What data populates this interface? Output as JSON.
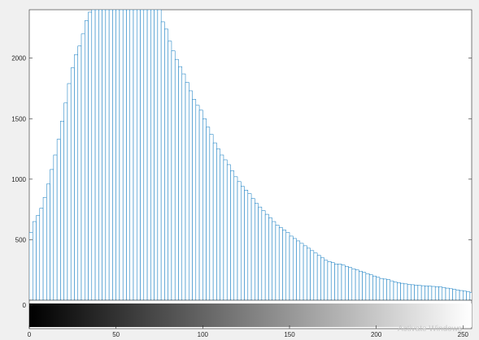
{
  "chart_data": {
    "type": "bar",
    "title": "",
    "xlabel": "",
    "ylabel": "",
    "xlim": [
      0,
      255
    ],
    "ylim": [
      0,
      2400
    ],
    "x_ticks": [
      0,
      50,
      100,
      150,
      200,
      250
    ],
    "y_ticks": [
      0,
      500,
      1000,
      1500,
      2000
    ],
    "bin_width": 2,
    "bar_color": "#0072bd",
    "colorbar": {
      "from": "#000000",
      "to": "#ffffff",
      "range": [
        0,
        255
      ]
    },
    "x": [
      1,
      3,
      5,
      7,
      9,
      11,
      13,
      15,
      17,
      19,
      21,
      23,
      25,
      27,
      29,
      31,
      33,
      35,
      37,
      39,
      41,
      43,
      45,
      47,
      49,
      51,
      53,
      55,
      57,
      59,
      61,
      63,
      65,
      67,
      69,
      71,
      73,
      75,
      77,
      79,
      81,
      83,
      85,
      87,
      89,
      91,
      93,
      95,
      97,
      99,
      101,
      103,
      105,
      107,
      109,
      111,
      113,
      115,
      117,
      119,
      121,
      123,
      125,
      127,
      129,
      131,
      133,
      135,
      137,
      139,
      141,
      143,
      145,
      147,
      149,
      151,
      153,
      155,
      157,
      159,
      161,
      163,
      165,
      167,
      169,
      171,
      173,
      175,
      177,
      179,
      181,
      183,
      185,
      187,
      189,
      191,
      193,
      195,
      197,
      199,
      201,
      203,
      205,
      207,
      209,
      211,
      213,
      215,
      217,
      219,
      221,
      223,
      225,
      227,
      229,
      231,
      233,
      235,
      237,
      239,
      241,
      243,
      245,
      247,
      249,
      251,
      253,
      255
    ],
    "values": [
      560,
      650,
      700,
      760,
      850,
      960,
      1080,
      1200,
      1330,
      1480,
      1630,
      1790,
      1920,
      2030,
      2100,
      2200,
      2310,
      2380,
      2400,
      2400,
      2400,
      2400,
      2400,
      2400,
      2400,
      2400,
      2400,
      2400,
      2400,
      2400,
      2400,
      2400,
      2400,
      2400,
      2400,
      2400,
      2400,
      2400,
      2300,
      2240,
      2140,
      2060,
      1990,
      1930,
      1870,
      1800,
      1730,
      1660,
      1610,
      1570,
      1500,
      1430,
      1370,
      1300,
      1250,
      1200,
      1160,
      1120,
      1070,
      1020,
      980,
      940,
      910,
      880,
      840,
      800,
      770,
      740,
      710,
      680,
      650,
      620,
      600,
      580,
      560,
      530,
      510,
      490,
      470,
      450,
      430,
      410,
      390,
      370,
      350,
      330,
      320,
      310,
      300,
      300,
      290,
      280,
      270,
      260,
      250,
      240,
      230,
      220,
      210,
      200,
      190,
      180,
      175,
      170,
      160,
      150,
      145,
      140,
      135,
      130,
      128,
      125,
      122,
      120,
      118,
      116,
      114,
      112,
      110,
      105,
      100,
      95,
      90,
      85,
      80,
      75,
      70,
      65
    ]
  },
  "watermark": "Activate Windows"
}
